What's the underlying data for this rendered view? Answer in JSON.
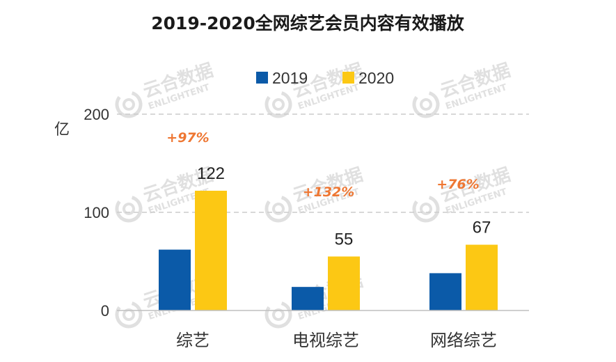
{
  "chart_data": {
    "type": "bar",
    "title": "2019-2020全网综艺会员内容有效播放",
    "ylabel": "亿",
    "ylim": [
      0,
      200
    ],
    "yticks": [
      "0",
      "100",
      "200"
    ],
    "categories": [
      "综艺",
      "电视综艺",
      "网络综艺"
    ],
    "series": [
      {
        "name": "2019",
        "color": "#0b5aa8",
        "values": [
          62,
          24,
          38
        ]
      },
      {
        "name": "2020",
        "color": "#fcc814",
        "values": [
          122,
          55,
          67
        ]
      }
    ],
    "data_labels": [
      "122",
      "55",
      "67"
    ],
    "growth_labels": [
      "+97%",
      "+132%",
      "+76%"
    ],
    "grid": "dashed",
    "legend": "top-center"
  },
  "watermark": {
    "name": "云合数据",
    "subtitle": "ENLIGHTENT",
    "color": "#bbbbbb"
  }
}
